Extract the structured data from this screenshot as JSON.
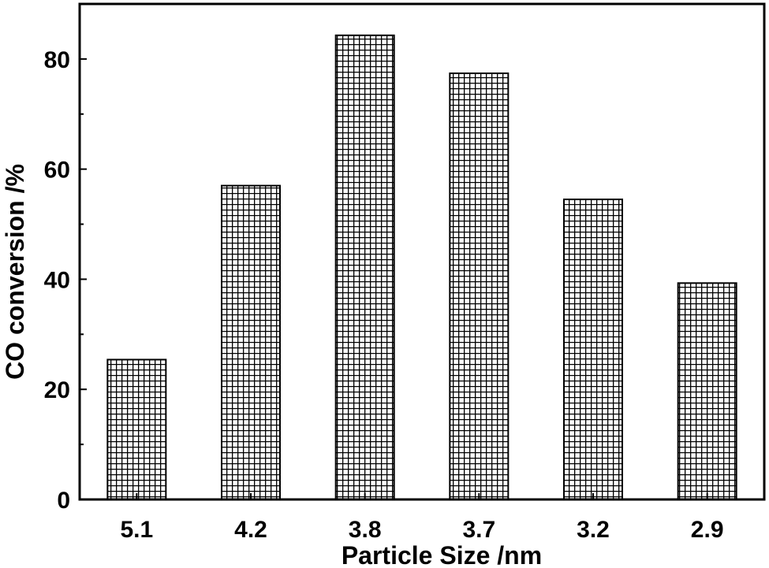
{
  "chart_data": {
    "type": "bar",
    "title": "",
    "xlabel": "Particle Size /nm",
    "ylabel": "CO conversion /%",
    "categories": [
      "5.1",
      "4.2",
      "3.8",
      "3.7",
      "3.2",
      "2.9"
    ],
    "values": [
      25.4,
      57.0,
      84.3,
      77.4,
      54.5,
      39.3
    ],
    "ylim": [
      0,
      90
    ],
    "yticks": [
      0,
      20,
      40,
      60,
      80
    ],
    "grid": false,
    "legend": "none",
    "bar_fill": "crosshatch",
    "colors": {
      "bar_line": "#000000",
      "background": "#ffffff"
    }
  }
}
